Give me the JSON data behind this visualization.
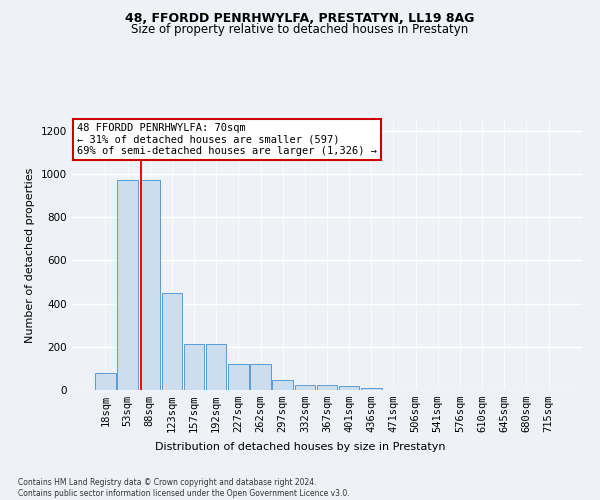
{
  "title": "48, FFORDD PENRHWYLFA, PRESTATYN, LL19 8AG",
  "subtitle": "Size of property relative to detached houses in Prestatyn",
  "xlabel_bottom": "Distribution of detached houses by size in Prestatyn",
  "ylabel": "Number of detached properties",
  "footer": "Contains HM Land Registry data © Crown copyright and database right 2024.\nContains public sector information licensed under the Open Government Licence v3.0.",
  "bar_labels": [
    "18sqm",
    "53sqm",
    "88sqm",
    "123sqm",
    "157sqm",
    "192sqm",
    "227sqm",
    "262sqm",
    "297sqm",
    "332sqm",
    "367sqm",
    "401sqm",
    "436sqm",
    "471sqm",
    "506sqm",
    "541sqm",
    "576sqm",
    "610sqm",
    "645sqm",
    "680sqm",
    "715sqm"
  ],
  "bar_values": [
    80,
    970,
    970,
    450,
    215,
    215,
    120,
    120,
    47,
    25,
    22,
    20,
    10,
    0,
    0,
    0,
    0,
    0,
    0,
    0,
    0
  ],
  "bar_color": "#ccdded",
  "bar_edge_color": "#5b9bd5",
  "red_line_x": 1.62,
  "annotation_title": "48 FFORDD PENRHWYLFA: 70sqm",
  "annotation_line1": "← 31% of detached houses are smaller (597)",
  "annotation_line2": "69% of semi-detached houses are larger (1,326) →",
  "annotation_box_facecolor": "#ffffff",
  "annotation_box_edgecolor": "#cc0000",
  "ylim": [
    0,
    1250
  ],
  "yticks": [
    0,
    200,
    400,
    600,
    800,
    1000,
    1200
  ],
  "background_color": "#eef2f7",
  "plot_bg_color": "#eef2f7",
  "grid_color": "#ffffff",
  "title_fontsize": 9,
  "subtitle_fontsize": 8.5,
  "ylabel_fontsize": 8,
  "tick_fontsize": 7.5,
  "annotation_fontsize": 7.5,
  "footer_fontsize": 5.5
}
